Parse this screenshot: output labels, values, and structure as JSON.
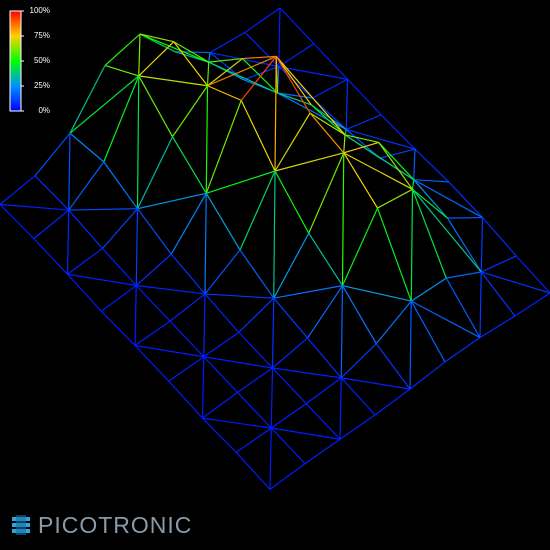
{
  "chart_data": {
    "type": "surface",
    "z": [
      [
        5,
        5,
        5,
        5,
        6,
        8,
        8,
        6,
        5
      ],
      [
        5,
        6,
        9,
        12,
        17,
        27,
        25,
        12,
        6
      ],
      [
        8,
        14,
        30,
        47,
        51,
        71,
        63,
        25,
        8
      ],
      [
        26,
        44,
        72,
        99,
        84,
        81,
        67,
        26,
        8
      ],
      [
        56,
        76,
        70,
        85,
        60,
        41,
        29,
        13,
        6
      ],
      [
        51,
        69,
        51,
        36,
        21,
        12,
        9,
        6,
        5
      ],
      [
        20,
        25,
        17,
        10,
        7,
        5,
        5,
        5,
        5
      ],
      [
        7,
        8,
        6,
        5,
        5,
        5,
        5,
        5,
        5
      ],
      [
        4,
        5,
        5,
        4,
        5,
        5,
        4,
        5,
        4
      ]
    ],
    "zlim": [
      0,
      100
    ],
    "zticks": [
      {
        "value": 0,
        "label": "0%"
      },
      {
        "value": 25,
        "label": "25%"
      },
      {
        "value": 50,
        "label": "50%"
      },
      {
        "value": 75,
        "label": "75%"
      },
      {
        "value": 100,
        "label": "100%"
      }
    ],
    "colormap": [
      "#0000ff",
      "#0090ff",
      "#00ff00",
      "#ffd000",
      "#ff0000"
    ]
  },
  "logo": {
    "text": "PICOTRONIC"
  }
}
